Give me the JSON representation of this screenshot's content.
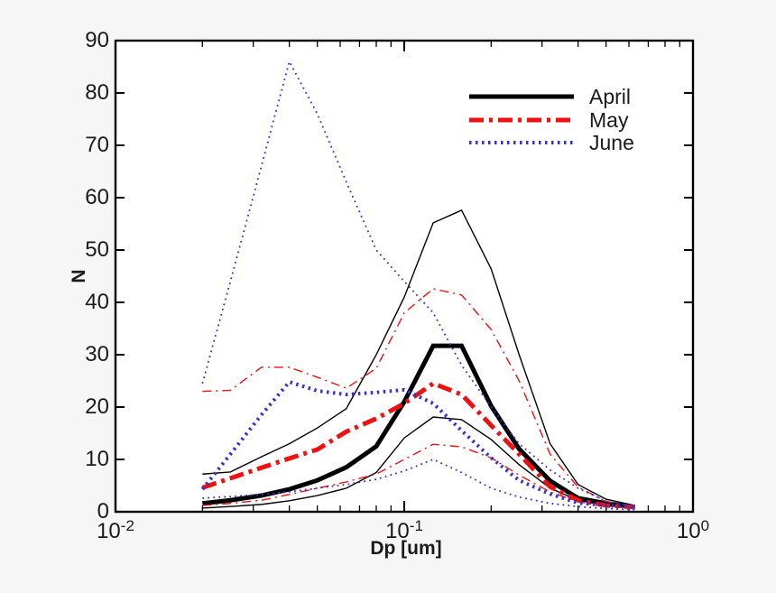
{
  "figure": {
    "background": "#f6f6f6",
    "plot_background": "#ffffff",
    "axis_color": "#000000"
  },
  "axes": {
    "x": {
      "label": "Dp [um]",
      "scale": "log",
      "min": 0.01,
      "max": 1,
      "major_ticks": [
        {
          "base": "10",
          "exp": "-2",
          "value": 0.01
        },
        {
          "base": "10",
          "exp": "-1",
          "value": 0.1
        },
        {
          "base": "10",
          "exp": "0",
          "value": 1
        }
      ],
      "minor_tick_mantissas": [
        2,
        3,
        4,
        5,
        6,
        7,
        8,
        9
      ]
    },
    "y": {
      "label": "N",
      "min": 0,
      "max": 90,
      "ticks": [
        0,
        10,
        20,
        30,
        40,
        50,
        60,
        70,
        80,
        90
      ]
    }
  },
  "legend": {
    "items": [
      {
        "label": "April",
        "color": "#000000",
        "style": "solid",
        "width": 5
      },
      {
        "label": "May",
        "color": "#ee1111",
        "style": "dashdot",
        "width": 5
      },
      {
        "label": "June",
        "color": "#3333cc",
        "style": "dotted",
        "width": 4
      }
    ]
  },
  "chart_data": {
    "type": "line",
    "title": "",
    "xlabel": "Dp [um]",
    "ylabel": "N",
    "x_scale": "log",
    "xlim": [
      0.01,
      1
    ],
    "ylim": [
      0,
      90
    ],
    "grid": false,
    "legend_position": "upper right inside, no box",
    "x_um": [
      0.02,
      0.025,
      0.032,
      0.04,
      0.05,
      0.063,
      0.08,
      0.1,
      0.126,
      0.158,
      0.2,
      0.25,
      0.32,
      0.4,
      0.5,
      0.63
    ],
    "series": [
      {
        "name": "April mean",
        "month": "April",
        "role": "mean",
        "color": "#000000",
        "style": "solid",
        "width": 5,
        "values": [
          1.6,
          2.2,
          3.1,
          4.3,
          6.0,
          8.5,
          12.5,
          21.0,
          31.7,
          31.7,
          20.2,
          12.0,
          5.9,
          2.6,
          1.6,
          0.9
        ]
      },
      {
        "name": "April upper",
        "month": "April",
        "role": "upper",
        "color": "#000000",
        "style": "solid",
        "width": 1.4,
        "values": [
          7.2,
          7.6,
          10.5,
          13.0,
          16.0,
          19.7,
          30.0,
          41.0,
          55.2,
          57.6,
          46.4,
          30.0,
          13.0,
          5.2,
          2.4,
          1.2
        ]
      },
      {
        "name": "April lower",
        "month": "April",
        "role": "lower",
        "color": "#000000",
        "style": "solid",
        "width": 1.4,
        "values": [
          0.7,
          1.0,
          1.4,
          2.1,
          3.1,
          4.5,
          7.5,
          14.1,
          18.1,
          17.6,
          13.8,
          9.0,
          4.5,
          2.2,
          1.2,
          0.7
        ]
      },
      {
        "name": "May mean",
        "month": "May",
        "role": "mean",
        "color": "#ee1111",
        "style": "dashdot",
        "width": 5,
        "values": [
          4.6,
          6.4,
          8.4,
          10.2,
          11.9,
          15.3,
          17.8,
          20.7,
          24.5,
          22.4,
          16.5,
          11.0,
          4.8,
          2.2,
          1.2,
          0.9
        ]
      },
      {
        "name": "May upper",
        "month": "May",
        "role": "upper",
        "color": "#ee1111",
        "style": "dashdot",
        "width": 1.4,
        "values": [
          23.0,
          23.2,
          27.6,
          27.6,
          25.7,
          23.6,
          27.4,
          38.0,
          42.6,
          41.4,
          34.8,
          25.0,
          11.0,
          4.7,
          2.0,
          1.0
        ]
      },
      {
        "name": "May lower",
        "month": "May",
        "role": "lower",
        "color": "#ee1111",
        "style": "dashdot",
        "width": 1.4,
        "values": [
          1.2,
          1.6,
          2.2,
          3.3,
          4.5,
          5.7,
          7.2,
          10.0,
          12.9,
          12.4,
          10.3,
          7.0,
          3.8,
          1.9,
          1.0,
          0.7
        ]
      },
      {
        "name": "June mean",
        "month": "June",
        "role": "mean",
        "color": "#3333cc",
        "style": "dotted",
        "width": 4,
        "values": [
          4.3,
          11.0,
          18.5,
          24.8,
          23.1,
          22.4,
          22.8,
          23.3,
          20.7,
          15.5,
          10.3,
          6.0,
          3.4,
          1.7,
          1.2,
          0.9
        ]
      },
      {
        "name": "June upper",
        "month": "June",
        "role": "upper",
        "color": "#3333cc",
        "style": "dotted",
        "width": 1.8,
        "values": [
          24.5,
          44.0,
          66.0,
          86.0,
          76.0,
          63.0,
          50.0,
          44.0,
          38.0,
          28.0,
          20.0,
          13.0,
          8.0,
          4.5,
          2.0,
          1.0
        ]
      },
      {
        "name": "June lower",
        "month": "June",
        "role": "lower",
        "color": "#3333cc",
        "style": "dotted",
        "width": 1.8,
        "values": [
          2.6,
          2.9,
          3.3,
          3.8,
          4.5,
          5.2,
          6.2,
          7.8,
          10.0,
          7.5,
          4.5,
          2.8,
          1.6,
          1.0,
          0.6,
          0.4
        ]
      }
    ]
  }
}
